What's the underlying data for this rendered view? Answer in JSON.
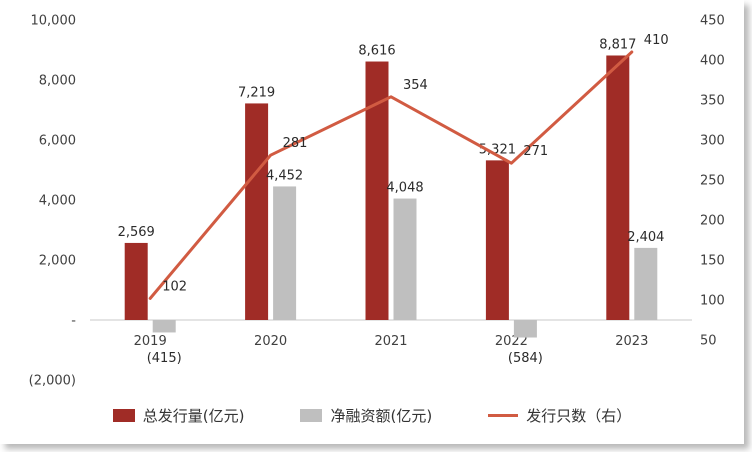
{
  "chart_data": {
    "type": "combo",
    "title": "",
    "categories": [
      "2019",
      "2020",
      "2021",
      "2022",
      "2023"
    ],
    "series": [
      {
        "name": "总发行量(亿元)",
        "type": "bar",
        "axis": "left",
        "color": "#A02C26",
        "values": [
          2569,
          7219,
          8616,
          5321,
          8817
        ],
        "labels": [
          "2,569",
          "7,219",
          "8,616",
          "5,321",
          "8,817"
        ]
      },
      {
        "name": "净融资额(亿元)",
        "type": "bar",
        "axis": "left",
        "color": "#BFBFBF",
        "values": [
          -415,
          4452,
          4048,
          -584,
          2404
        ],
        "labels": [
          "(415)",
          "4,452",
          "4,048",
          "(584)",
          "2,404"
        ]
      },
      {
        "name": "发行只数（右）",
        "type": "line",
        "axis": "right",
        "color": "#D15B42",
        "values": [
          102,
          281,
          354,
          271,
          410
        ],
        "labels": [
          "102",
          "281",
          "354",
          "271",
          "410"
        ]
      }
    ],
    "axes": {
      "left": {
        "min": -2000,
        "max": 10000,
        "ticks": [
          {
            "label": "10,000",
            "value": 10000
          },
          {
            "label": "8,000",
            "value": 8000
          },
          {
            "label": "6,000",
            "value": 6000
          },
          {
            "label": "4,000",
            "value": 4000
          },
          {
            "label": "2,000",
            "value": 2000
          },
          {
            "label": "-",
            "value": 0
          },
          {
            "label": "(2,000)",
            "value": -2000
          }
        ]
      },
      "right": {
        "min": 0,
        "max": 450,
        "ticks": [
          {
            "label": "450",
            "value": 450
          },
          {
            "label": "400",
            "value": 400
          },
          {
            "label": "350",
            "value": 350
          },
          {
            "label": "300",
            "value": 300
          },
          {
            "label": "250",
            "value": 250
          },
          {
            "label": "200",
            "value": 200
          },
          {
            "label": "150",
            "value": 150
          },
          {
            "label": "100",
            "value": 100
          },
          {
            "label": "50",
            "value": 50
          }
        ]
      }
    },
    "grid": false,
    "legend_position": "bottom",
    "colors": {
      "background": "#FFFFFF",
      "axis_line": "#C9C9C9",
      "text": "#404040"
    }
  }
}
